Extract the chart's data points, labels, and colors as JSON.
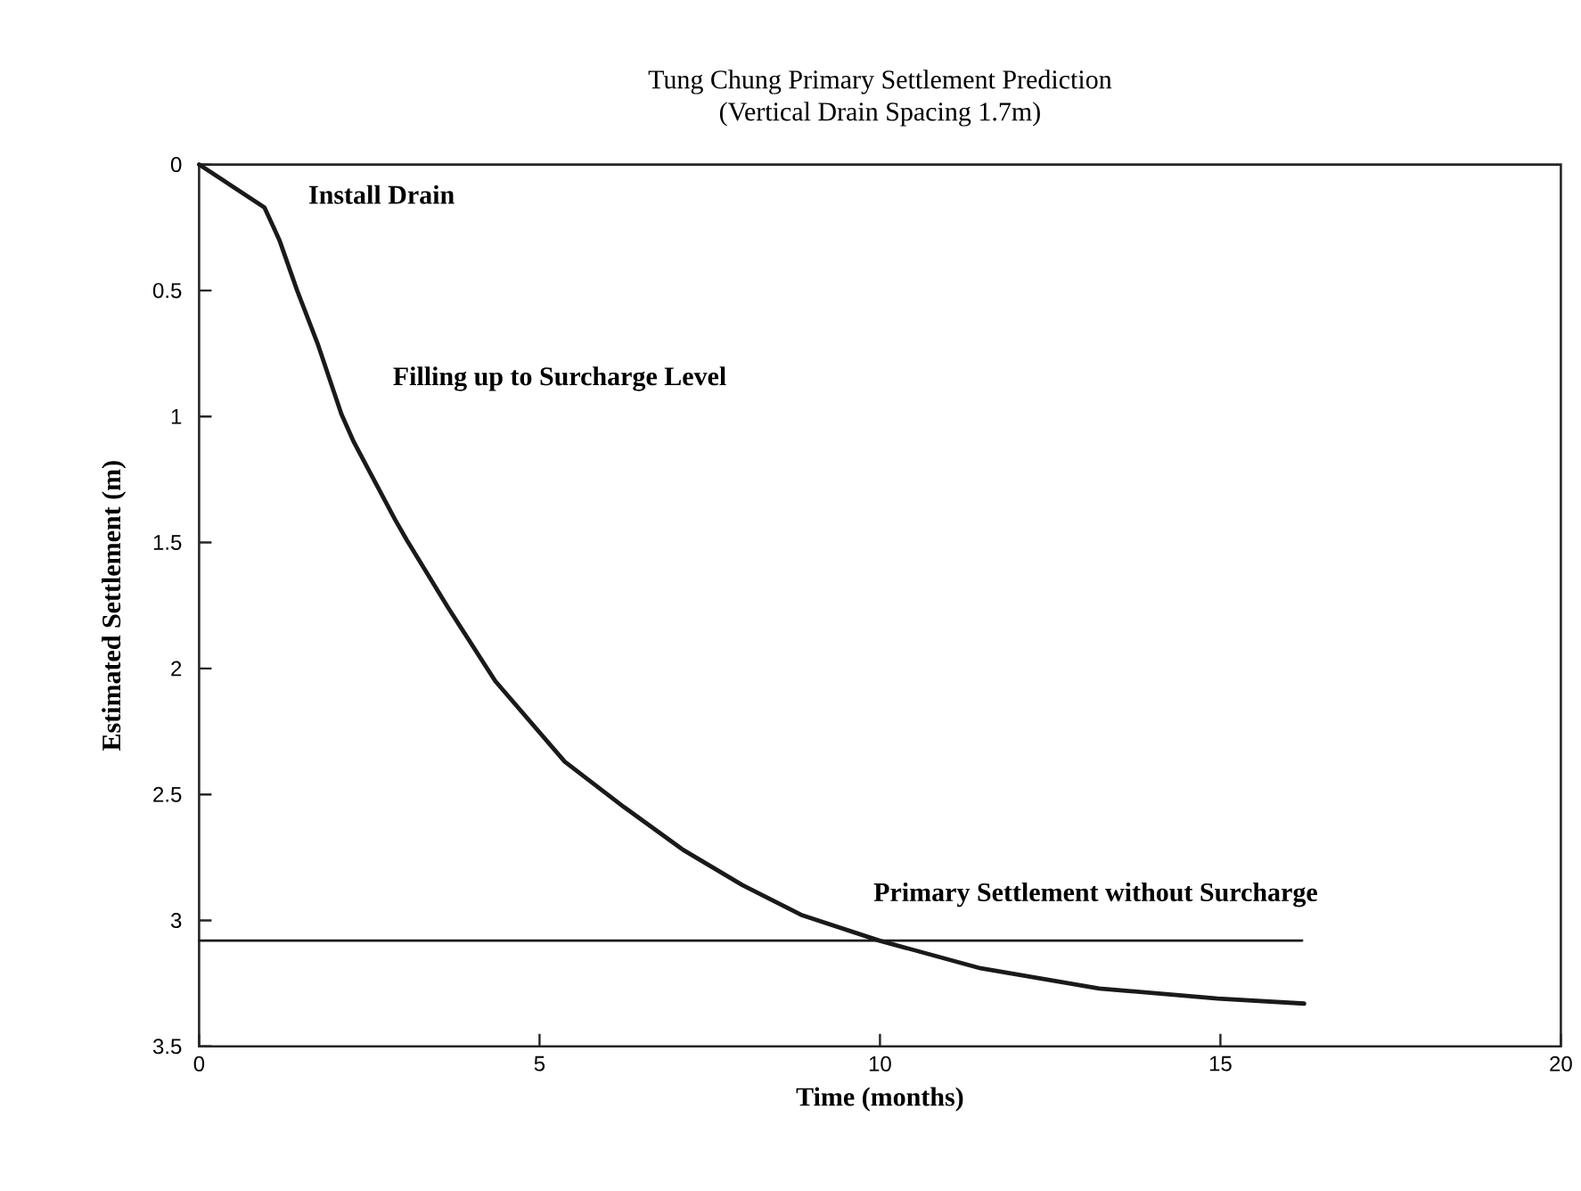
{
  "chart_data": {
    "type": "line",
    "title": "Tung Chung Primary Settlement Prediction",
    "subtitle": "(Vertical Drain Spacing 1.7m)",
    "xlabel": "Time (months)",
    "ylabel": "Estimated Settlement (m)",
    "series": [
      {
        "color": "#1a1a1a",
        "x": [
          0,
          0.96,
          1.18,
          1.44,
          1.74,
          2.09,
          2.27,
          2.88,
          3.05,
          3.66,
          4.35,
          5.37,
          6.24,
          7.11,
          7.98,
          8.86,
          9.99,
          11.48,
          13.22,
          14.96,
          16.23
        ],
        "values": [
          0,
          0.17,
          0.3,
          0.5,
          0.71,
          0.99,
          1.1,
          1.41,
          1.49,
          1.76,
          2.05,
          2.37,
          2.55,
          2.72,
          2.86,
          2.98,
          3.08,
          3.19,
          3.27,
          3.31,
          3.33
        ]
      },
      {
        "name": "Primary Settlement without Surcharge",
        "color": "#1a1a1a",
        "x": [
          0,
          16.2
        ],
        "values": [
          3.08,
          3.08
        ]
      }
    ],
    "annotations": [
      "Install Drain",
      "Filling up to Surcharge Level"
    ],
    "xlim": [
      0,
      20
    ],
    "ylim": [
      3.5,
      0
    ],
    "xticks": [
      0,
      5,
      10,
      15,
      20
    ],
    "yticks": [
      0,
      0.5,
      1,
      1.5,
      2,
      2.5,
      3,
      3.5
    ]
  }
}
